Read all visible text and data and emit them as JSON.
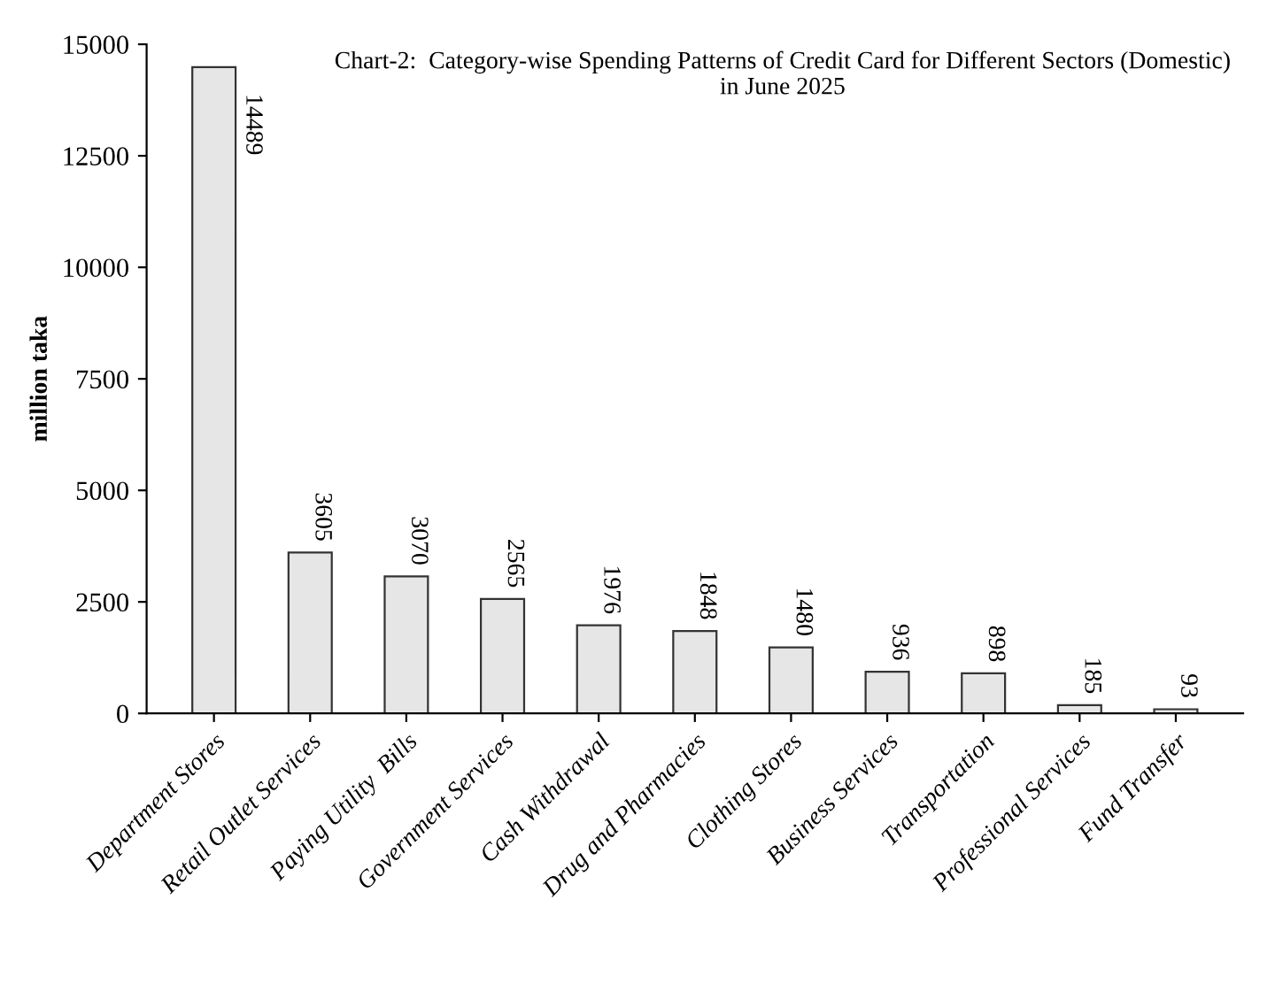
{
  "chart_data": {
    "type": "bar",
    "title": "Chart-2:  Category-wise Spending Patterns of Credit Card for Different Sectors (Domestic)\nin June 2025",
    "ylabel": "million taka",
    "categories": [
      "Department Stores",
      "Retail Outlet Services",
      "Paying Utility  Bills",
      "Government Services",
      "Cash Withdrawal",
      "Drug and Pharmacies",
      "Clothing Stores",
      "Business Services",
      "Transportation",
      "Professional Services",
      "Fund Transfer"
    ],
    "values": [
      14489,
      3605,
      3070,
      2565,
      1976,
      1848,
      1480,
      936,
      898,
      185,
      93
    ],
    "color": "#e6e6e6",
    "ylim": [
      0,
      15000
    ],
    "yticks": [
      0,
      2500,
      5000,
      7500,
      10000,
      12500,
      15000
    ],
    "data_labels": true,
    "grid": false
  }
}
